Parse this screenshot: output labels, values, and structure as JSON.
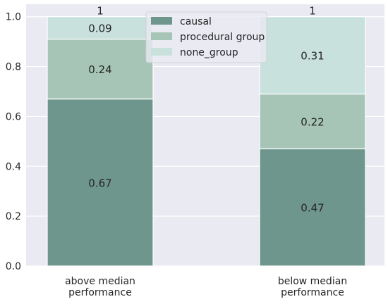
{
  "chart_data": {
    "type": "bar",
    "stacked": true,
    "categories": [
      "above median\nperformance",
      "below median\nperformance"
    ],
    "series": [
      {
        "name": "causal",
        "values": [
          0.67,
          0.47
        ],
        "labels": [
          "0.67",
          "0.47"
        ],
        "color": "#6e968c"
      },
      {
        "name": "procedural group",
        "values": [
          0.24,
          0.22
        ],
        "labels": [
          "0.24",
          "0.22"
        ],
        "color": "#a7c5b7"
      },
      {
        "name": "none_group",
        "values": [
          0.09,
          0.31
        ],
        "labels": [
          "0.09",
          "0.31"
        ],
        "color": "#c8e1dd"
      }
    ],
    "totals": [
      "1",
      "1"
    ],
    "yticks": [
      "0.0",
      "0.2",
      "0.4",
      "0.6",
      "0.8",
      "1.0"
    ],
    "ylim": [
      0,
      1.05
    ],
    "grid": true,
    "legend_position": "top-center",
    "colors": {
      "background": "#eaeaf2",
      "grid": "#ffffff"
    }
  }
}
